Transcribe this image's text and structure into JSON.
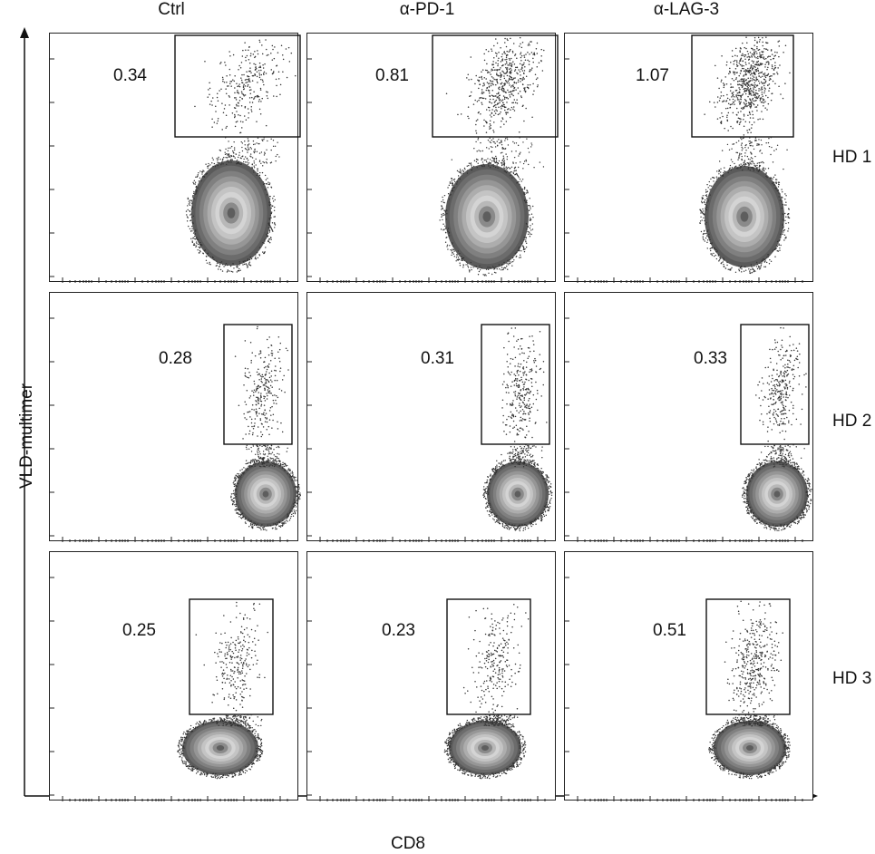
{
  "chart_data": {
    "type": "scatter",
    "subtype": "flow-cytometry-density-plots",
    "xlabel": "CD8",
    "ylabel": "VLD-multimer",
    "columns": [
      "Ctrl",
      "α-PD-1",
      "α-LAG-3"
    ],
    "rows": [
      "HD 1",
      "HD 2",
      "HD 3"
    ],
    "panels": [
      {
        "row": "HD 1",
        "column": "Ctrl",
        "gate_percent": "0.34"
      },
      {
        "row": "HD 1",
        "column": "α-PD-1",
        "gate_percent": "0.81"
      },
      {
        "row": "HD 1",
        "column": "α-LAG-3",
        "gate_percent": "1.07"
      },
      {
        "row": "HD 2",
        "column": "Ctrl",
        "gate_percent": "0.28"
      },
      {
        "row": "HD 2",
        "column": "α-PD-1",
        "gate_percent": "0.31"
      },
      {
        "row": "HD 2",
        "column": "α-LAG-3",
        "gate_percent": "0.33"
      },
      {
        "row": "HD 3",
        "column": "Ctrl",
        "gate_percent": "0.25"
      },
      {
        "row": "HD 3",
        "column": "α-PD-1",
        "gate_percent": "0.23"
      },
      {
        "row": "HD 3",
        "column": "α-LAG-3",
        "gate_percent": "0.51"
      }
    ]
  },
  "colors": {
    "frame": "#222222",
    "population_dark": "#555555",
    "population_light": "#d8d8d8",
    "dots": "#333333"
  }
}
